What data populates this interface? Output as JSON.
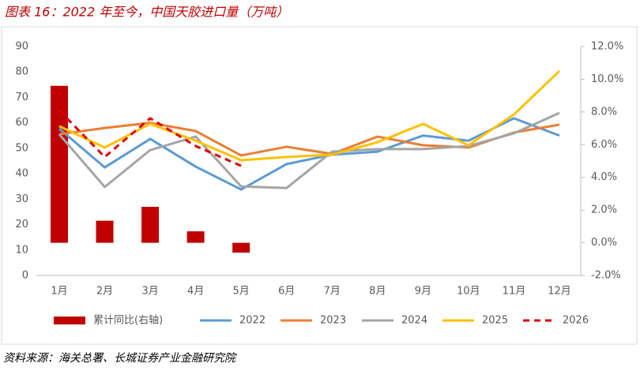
{
  "title": "图表 16：2022 年至今，中国天胶进口量（万吨）",
  "source": "资料来源：海关总署、长城证券产业金融研究院",
  "chart_data": {
    "type": "combo",
    "categories": [
      "1月",
      "2月",
      "3月",
      "4月",
      "5月",
      "6月",
      "7月",
      "8月",
      "9月",
      "10月",
      "11月",
      "12月"
    ],
    "ylim": [
      0,
      90
    ],
    "yticks": [
      0,
      10,
      20,
      30,
      40,
      50,
      60,
      70,
      80,
      90
    ],
    "y2lim": [
      -2,
      12
    ],
    "y2ticks": [
      {
        "value": -2,
        "label": "-2.0%"
      },
      {
        "value": 0,
        "label": "0.0%"
      },
      {
        "value": 2,
        "label": "2.0%"
      },
      {
        "value": 4,
        "label": "4.0%"
      },
      {
        "value": 6,
        "label": "6.0%"
      },
      {
        "value": 8,
        "label": "8.0%"
      },
      {
        "value": 10,
        "label": "10.0%"
      },
      {
        "value": 12,
        "label": "12.0%"
      }
    ],
    "series": [
      {
        "name": "累计同比(右轴)",
        "type": "bar",
        "axis": "y2",
        "color": "#c00000",
        "values": [
          9.6,
          1.35,
          2.2,
          0.7,
          -0.6,
          null,
          null,
          null,
          null,
          null,
          null,
          null
        ]
      },
      {
        "name": "2022",
        "type": "line",
        "color": "#5b9bd5",
        "values": [
          57.7,
          42.5,
          53.7,
          42.8,
          33.8,
          43.8,
          47.5,
          48.7,
          55,
          53,
          61.8,
          55
        ]
      },
      {
        "name": "2023",
        "type": "line",
        "color": "#ed7d31",
        "values": [
          55.5,
          58,
          60,
          56.8,
          47.2,
          50.6,
          47.8,
          54.6,
          51.2,
          50.3,
          56.2,
          59.3
        ]
      },
      {
        "name": "2024",
        "type": "line",
        "color": "#a5a5a5",
        "values": [
          55.5,
          34.8,
          49.3,
          54.6,
          35,
          34.4,
          48.7,
          49.7,
          49.7,
          50.9,
          55.9,
          63.9
        ]
      },
      {
        "name": "2025",
        "type": "line",
        "color": "#ffc000",
        "values": [
          58.7,
          50.3,
          59.6,
          53,
          45.3,
          46.6,
          47.5,
          52.4,
          59.6,
          51.2,
          63.3,
          80.4
        ]
      },
      {
        "name": "2026",
        "type": "line",
        "color": "#e00000",
        "dashed": true,
        "values": [
          64.9,
          46.6,
          61.8,
          50.9,
          43.1,
          null,
          null,
          null,
          null,
          null,
          null,
          null
        ]
      }
    ]
  }
}
